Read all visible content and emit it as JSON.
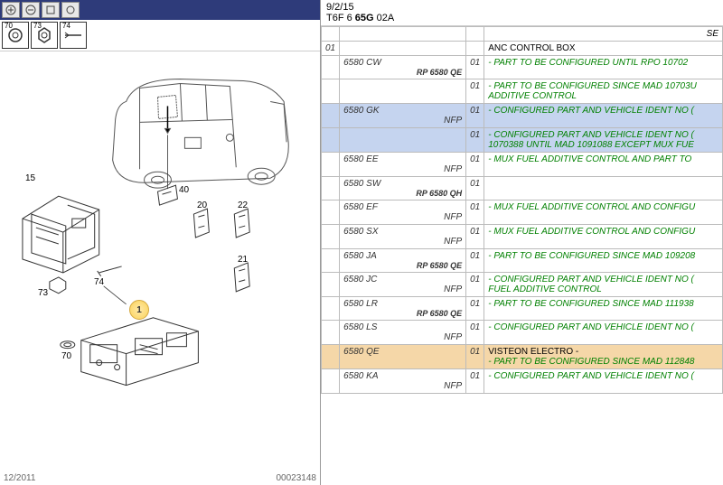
{
  "header": {
    "date": "9/2/15",
    "code_prefix": "T6F 6 ",
    "code_bold": "65G",
    "code_suffix": " 02A",
    "se": "SE"
  },
  "top_parts": {
    "p70": "70",
    "p73": "73",
    "p74": "74"
  },
  "diagram": {
    "labels": {
      "l15": "15",
      "l40": "40",
      "l20": "20",
      "l22": "22",
      "l21": "21",
      "l73": "73",
      "l74": "74",
      "l70": "70",
      "l1": "1"
    },
    "callout_color": "#ffe9a8"
  },
  "footer": {
    "date": "12/2011",
    "ref": "00023148"
  },
  "table": {
    "rows": [
      {
        "c1": "01",
        "ref": "",
        "sub": "",
        "c3": "",
        "title": "ANC CONTROL BOX",
        "notes": []
      },
      {
        "c1": "",
        "ref": "6580 CW",
        "sub": "RP 6580 QE",
        "subtype": "rp",
        "c3": "01",
        "notes": [
          "- PART TO BE CONFIGURED UNTIL RPO 10702"
        ]
      },
      {
        "c1": "",
        "ref": "",
        "sub": "",
        "c3": "01",
        "notes": [
          "- PART TO BE CONFIGURED SINCE MAD 10703U",
          "ADDITIVE CONTROL"
        ]
      },
      {
        "c1": "",
        "ref": "6580 GK",
        "sub": "NFP",
        "subtype": "nfp",
        "c3": "01",
        "hl": "blue",
        "notes": [
          "- CONFIGURED PART AND VEHICLE IDENT NO ("
        ]
      },
      {
        "c1": "",
        "ref": "",
        "sub": "",
        "c3": "01",
        "hl": "blue",
        "notes": [
          "- CONFIGURED PART AND VEHICLE IDENT NO (",
          "1070388 UNTIL MAD 1091088 EXCEPT MUX FUE"
        ]
      },
      {
        "c1": "",
        "ref": "6580 EE",
        "sub": "NFP",
        "subtype": "nfp",
        "c3": "01",
        "notes": [
          "- MUX FUEL ADDITIVE CONTROL AND PART TO"
        ]
      },
      {
        "c1": "",
        "ref": "6580 SW",
        "sub": "RP 6580 QH",
        "subtype": "rp",
        "c3": "01",
        "notes": []
      },
      {
        "c1": "",
        "ref": "6580 EF",
        "sub": "NFP",
        "subtype": "nfp",
        "c3": "01",
        "notes": [
          "- MUX FUEL ADDITIVE CONTROL AND CONFIGU"
        ]
      },
      {
        "c1": "",
        "ref": "6580 SX",
        "sub": "NFP",
        "subtype": "nfp",
        "c3": "01",
        "notes": [
          "- MUX FUEL ADDITIVE CONTROL AND CONFIGU"
        ]
      },
      {
        "c1": "",
        "ref": "6580 JA",
        "sub": "RP 6580 QE",
        "subtype": "rp",
        "c3": "01",
        "notes": [
          "- PART TO BE CONFIGURED SINCE MAD 109208"
        ]
      },
      {
        "c1": "",
        "ref": "6580 JC",
        "sub": "NFP",
        "subtype": "nfp",
        "c3": "01",
        "notes": [
          "- CONFIGURED PART AND VEHICLE IDENT NO (",
          "FUEL ADDITIVE CONTROL"
        ]
      },
      {
        "c1": "",
        "ref": "6580 LR",
        "sub": "RP 6580 QE",
        "subtype": "rp",
        "c3": "01",
        "notes": [
          "- PART TO BE CONFIGURED SINCE MAD 111938"
        ]
      },
      {
        "c1": "",
        "ref": "6580 LS",
        "sub": "NFP",
        "subtype": "nfp",
        "c3": "01",
        "notes": [
          "- CONFIGURED PART AND VEHICLE IDENT NO ("
        ]
      },
      {
        "c1": "",
        "ref": "6580 QE",
        "sub": "",
        "c3": "01",
        "hl": "orange",
        "title2": "VISTEON ELECTRO -",
        "notes": [
          "- PART TO BE CONFIGURED SINCE MAD 112848"
        ]
      },
      {
        "c1": "",
        "ref": "6580 KA",
        "sub": "NFP",
        "subtype": "nfp",
        "c3": "01",
        "notes": [
          "- CONFIGURED PART AND VEHICLE IDENT NO ("
        ]
      }
    ]
  }
}
